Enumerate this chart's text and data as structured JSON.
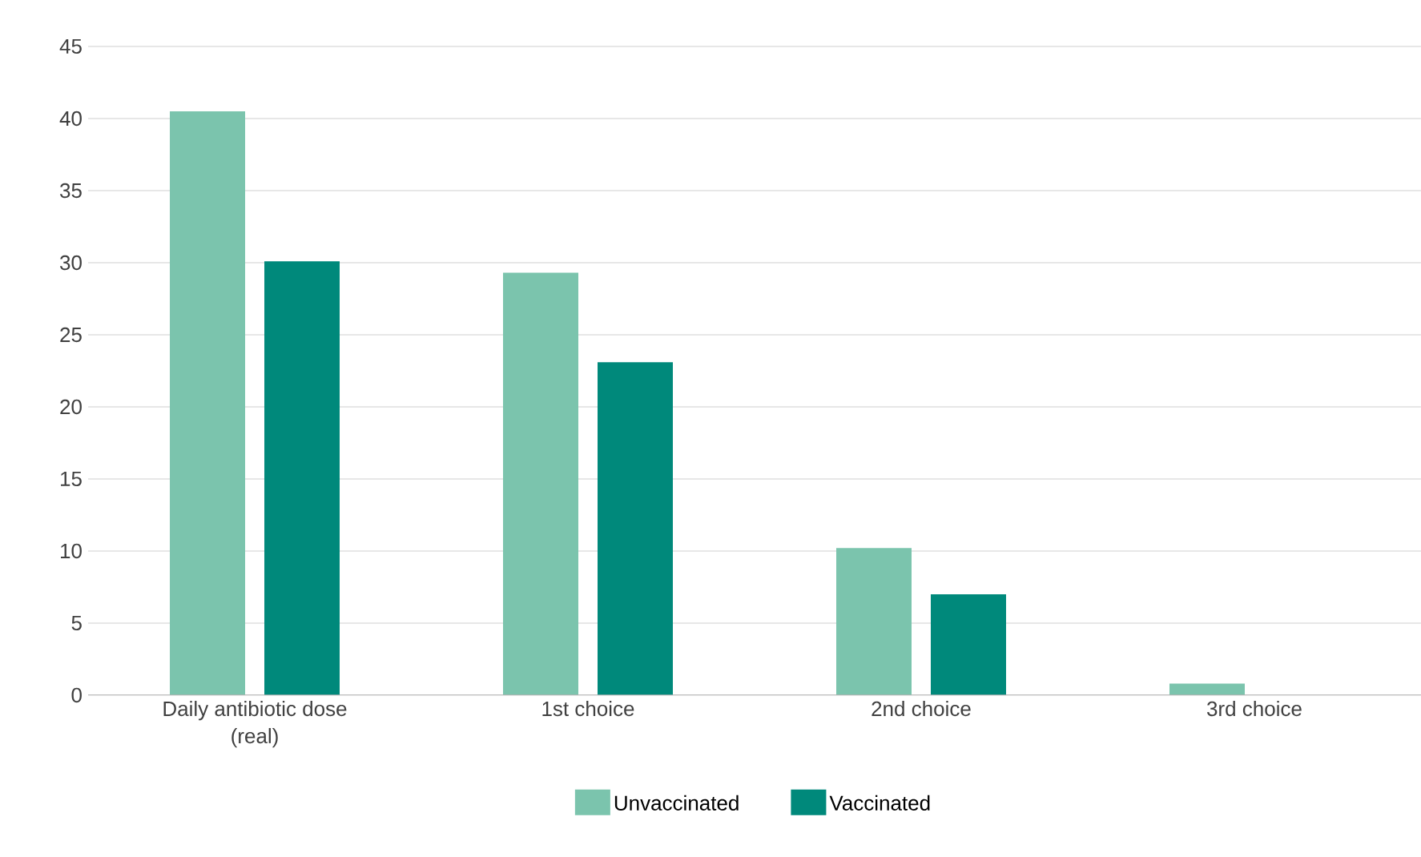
{
  "chart_data": {
    "type": "bar",
    "categories": [
      "Daily antibiotic dose\n(real)",
      "1st choice",
      "2nd choice",
      "3rd choice"
    ],
    "series": [
      {
        "name": "Unvaccinated",
        "color": "#7bc4ad",
        "values": [
          40.5,
          29.3,
          10.2,
          0.8
        ]
      },
      {
        "name": "Vaccinated",
        "color": "#00897b",
        "values": [
          30.1,
          23.1,
          7.0,
          0
        ]
      }
    ],
    "ylim": [
      0,
      45
    ],
    "yticks": [
      0,
      5,
      10,
      15,
      20,
      25,
      30,
      35,
      40,
      45
    ],
    "grid": "y",
    "legend": "bottom"
  }
}
